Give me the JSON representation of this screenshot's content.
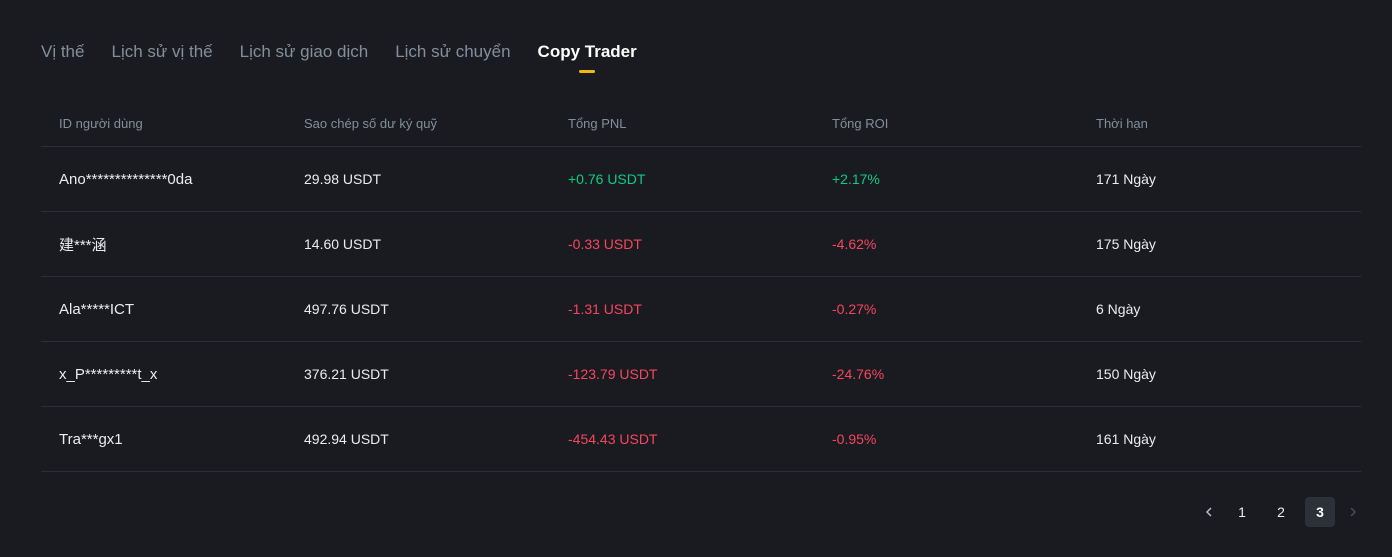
{
  "tabs": [
    {
      "label": "Vị thế",
      "active": false
    },
    {
      "label": "Lịch sử vị thế",
      "active": false
    },
    {
      "label": "Lịch sử giao dịch",
      "active": false
    },
    {
      "label": "Lịch sử chuyển",
      "active": false
    },
    {
      "label": "Copy Trader",
      "active": true
    }
  ],
  "table": {
    "headers": [
      "ID người dùng",
      "Sao chép số dư ký quỹ",
      "Tổng PNL",
      "Tổng ROI",
      "Thời hạn"
    ],
    "rows": [
      {
        "user_id": "Ano**************0da",
        "balance": "29.98 USDT",
        "pnl": "+0.76 USDT",
        "roi": "+2.17%",
        "duration": "171 Ngày",
        "sign": "pos"
      },
      {
        "user_id": "建***涵",
        "balance": "14.60 USDT",
        "pnl": "-0.33 USDT",
        "roi": "-4.62%",
        "duration": "175 Ngày",
        "sign": "neg"
      },
      {
        "user_id": "Ala*****ICT",
        "balance": "497.76 USDT",
        "pnl": "-1.31 USDT",
        "roi": "-0.27%",
        "duration": "6 Ngày",
        "sign": "neg"
      },
      {
        "user_id": "x_P*********t_x",
        "balance": "376.21 USDT",
        "pnl": "-123.79 USDT",
        "roi": "-24.76%",
        "duration": "150 Ngày",
        "sign": "neg"
      },
      {
        "user_id": "Tra***gx1",
        "balance": "492.94 USDT",
        "pnl": "-454.43 USDT",
        "roi": "-0.95%",
        "duration": "161 Ngày",
        "sign": "neg"
      }
    ]
  },
  "pagination": {
    "prev_icon": "chevron-left-icon",
    "next_icon": "chevron-right-icon",
    "pages": [
      "1",
      "2",
      "3"
    ],
    "current": "3"
  },
  "colors": {
    "accent": "#f0b90b",
    "positive": "#0ecb81",
    "negative": "#f6465d",
    "background": "#1a1b20"
  }
}
